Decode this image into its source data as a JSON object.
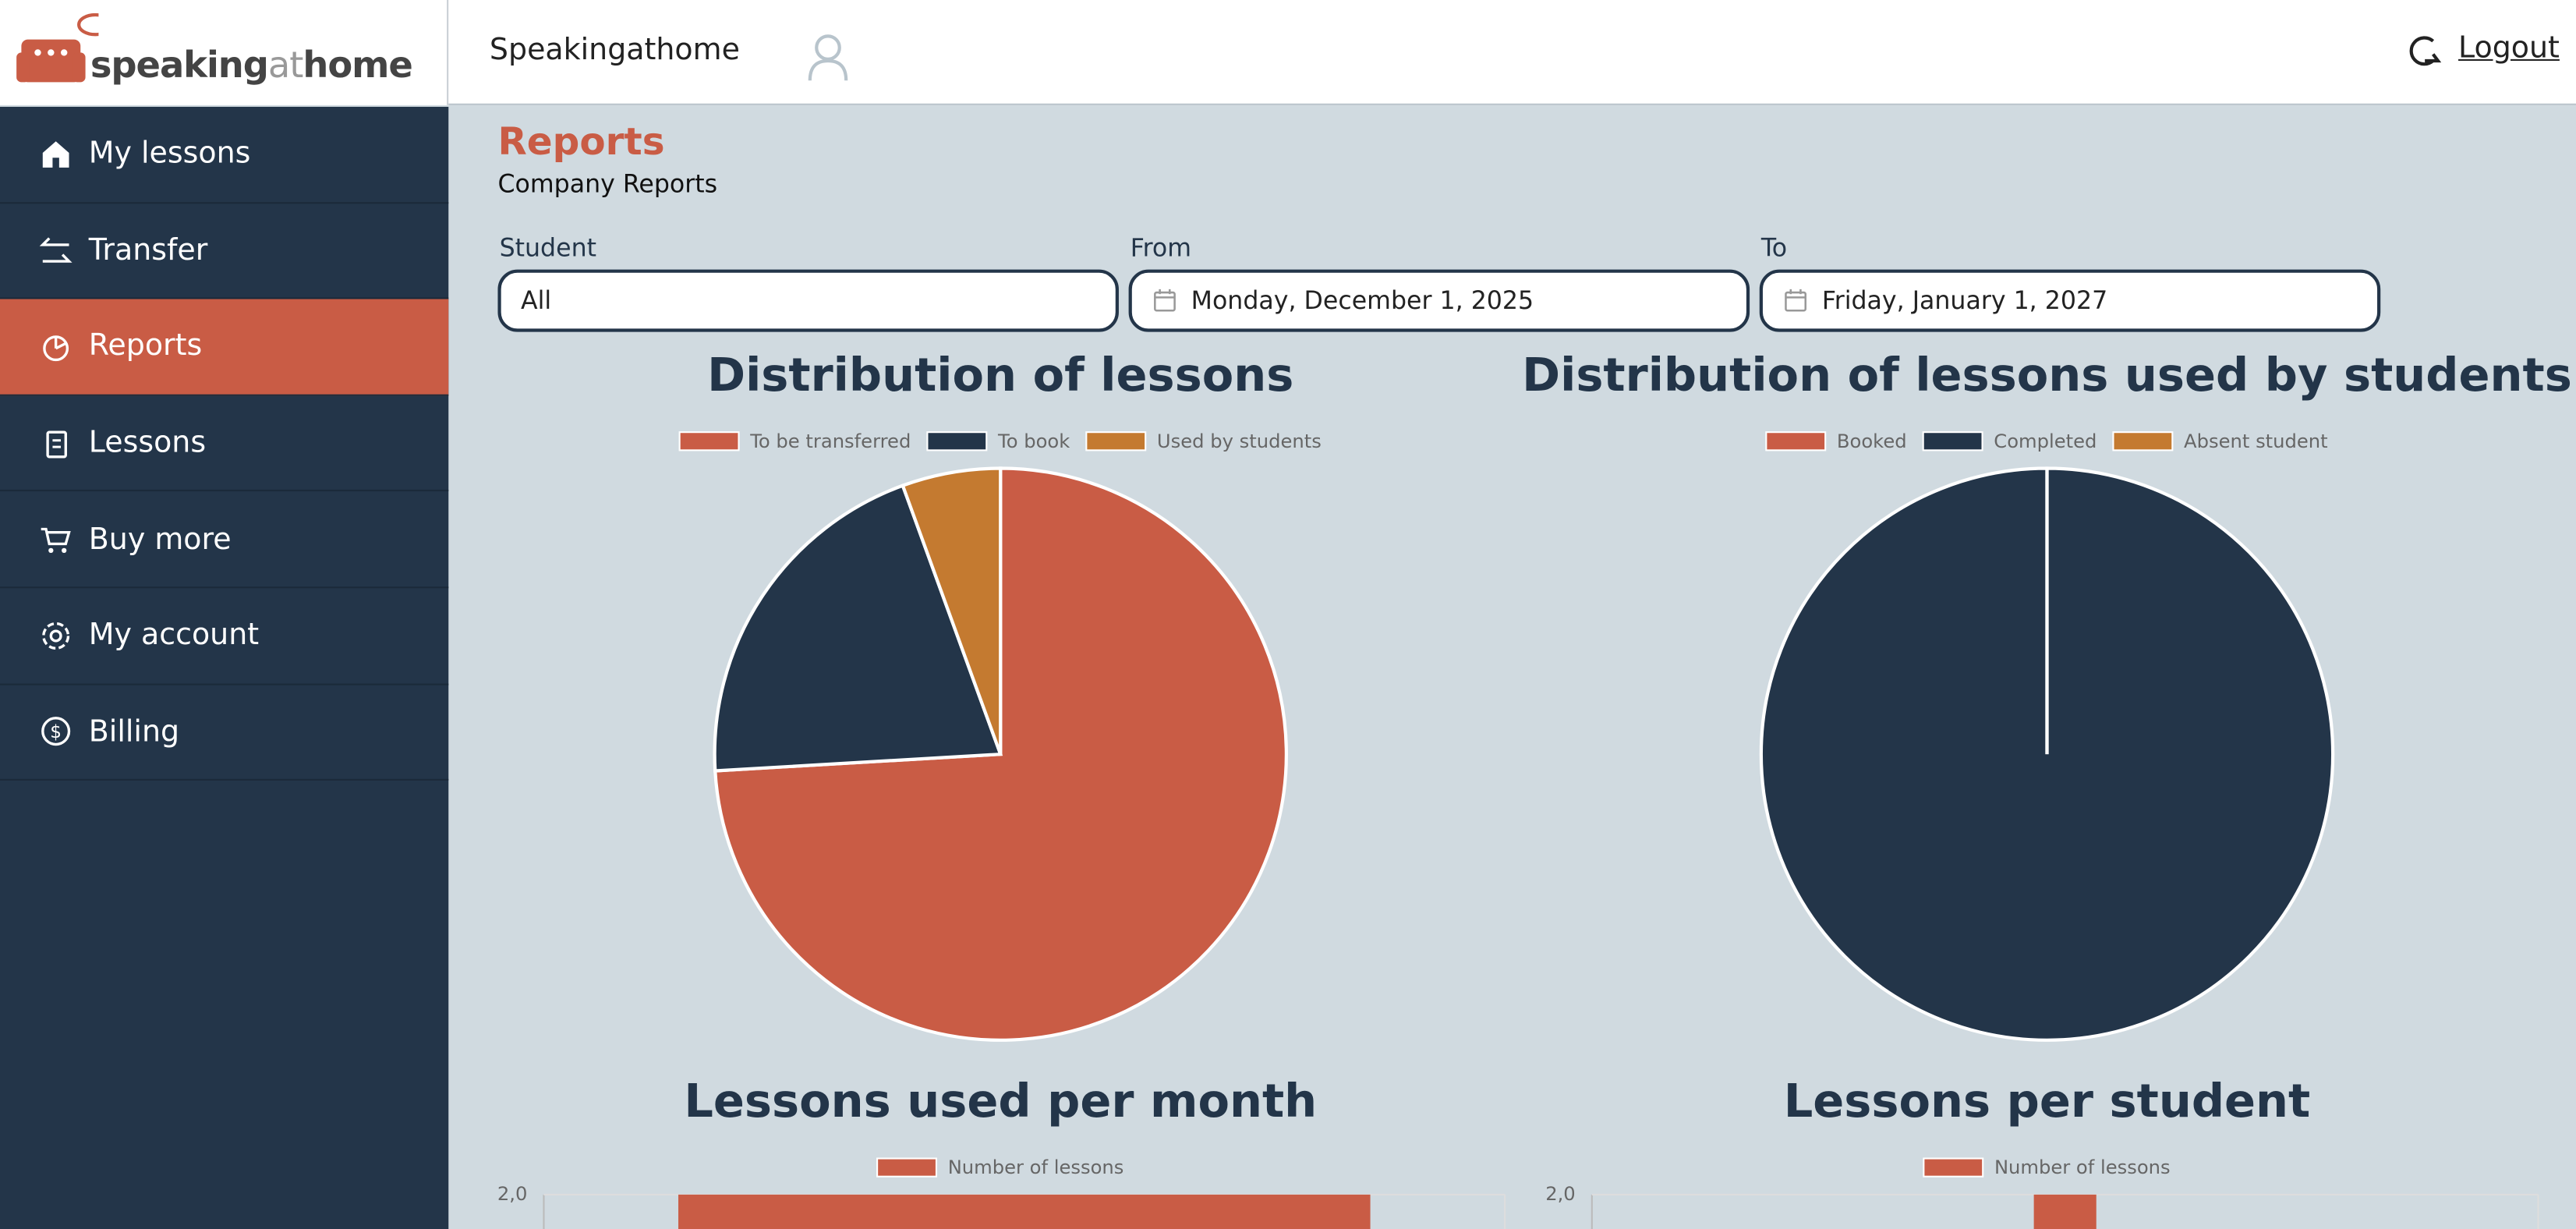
{
  "header": {
    "logo": [
      "speaking",
      "at",
      "home"
    ],
    "company": "Speakingathome",
    "logout": "Logout"
  },
  "sidebar": {
    "items": [
      "My lessons",
      "Transfer",
      "Reports",
      "Lessons",
      "Buy more",
      "My account",
      "Billing"
    ],
    "active": 2
  },
  "page": {
    "title": "Reports",
    "subtitle": "Company Reports"
  },
  "filters": [
    {
      "label": "Student",
      "value": "All"
    },
    {
      "label": "From",
      "value": "Monday, December 1, 2025"
    },
    {
      "label": "To",
      "value": "Friday, January 1, 2027"
    }
  ],
  "chart_data": [
    {
      "type": "pie",
      "title": "Distribution of lessons",
      "categories": [
        "To be transferred",
        "To book",
        "Used by students"
      ],
      "values": [
        40,
        11,
        3
      ],
      "colors": [
        "#c95c45",
        "#233549",
        "#c47a30"
      ]
    },
    {
      "type": "pie",
      "title": "Distribution of lessons used by students",
      "categories": [
        "Booked",
        "Completed",
        "Absent student"
      ],
      "values": [
        0,
        1,
        0
      ],
      "colors": [
        "#c95c45",
        "#233549",
        "#c47a30"
      ]
    },
    {
      "type": "bar",
      "title": "Lessons used per month",
      "categories": [
        null
      ],
      "series": [
        {
          "name": "Number of lessons",
          "color": "#c95c45",
          "values": [
            2
          ]
        }
      ],
      "ylim": [
        0,
        2
      ],
      "yticks": [
        {
          "value": 2,
          "label": "2,0"
        }
      ],
      "grid": true
    },
    {
      "type": "bar",
      "title": "Lessons per student",
      "categories": [
        null
      ],
      "series": [
        {
          "name": "Number of lessons",
          "color": "#c95c45",
          "values": [
            2
          ]
        }
      ],
      "ylim": [
        0,
        2
      ],
      "yticks": [
        {
          "value": 2,
          "label": "2,0"
        }
      ],
      "grid": true
    }
  ]
}
